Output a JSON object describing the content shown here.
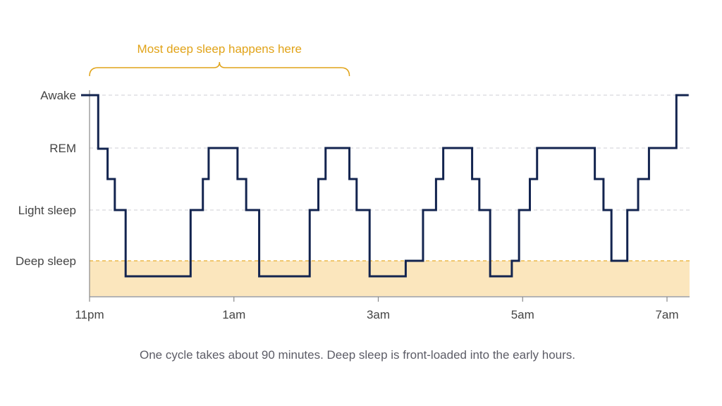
{
  "chart_data": {
    "type": "line",
    "title": "",
    "xlabel": "",
    "ylabel": "",
    "x_unit": "hours",
    "x_ticks": [
      {
        "label": "11pm",
        "value": 23
      },
      {
        "label": "1am",
        "value": 25
      },
      {
        "label": "3am",
        "value": 27
      },
      {
        "label": "5am",
        "value": 29
      },
      {
        "label": "7am",
        "value": 31
      }
    ],
    "xlim": [
      23,
      31.4
    ],
    "y_categories": [
      "Deep sleep",
      "Light sleep",
      "REM",
      "Awake"
    ],
    "deep_sleep_level": "Deep sleep",
    "series": [
      {
        "step": "post",
        "points": [
          {
            "x": 23.0,
            "y": "Awake"
          },
          {
            "x": 23.12,
            "y": "REM-lower"
          },
          {
            "x": 23.25,
            "y": "Light-upper"
          },
          {
            "x": 23.35,
            "y": "Light sleep"
          },
          {
            "x": 23.5,
            "y": "Deep-lower"
          },
          {
            "x": 24.4,
            "y": "Light sleep"
          },
          {
            "x": 24.57,
            "y": "Light-upper"
          },
          {
            "x": 24.65,
            "y": "REM"
          },
          {
            "x": 25.05,
            "y": "Light-upper"
          },
          {
            "x": 25.17,
            "y": "Light sleep"
          },
          {
            "x": 25.35,
            "y": "Deep-lower"
          },
          {
            "x": 26.05,
            "y": "Light sleep"
          },
          {
            "x": 26.17,
            "y": "Light-upper"
          },
          {
            "x": 26.27,
            "y": "REM"
          },
          {
            "x": 26.6,
            "y": "Light-upper"
          },
          {
            "x": 26.7,
            "y": "Light sleep"
          },
          {
            "x": 26.88,
            "y": "Deep-lower"
          },
          {
            "x": 27.38,
            "y": "Deep sleep"
          },
          {
            "x": 27.62,
            "y": "Light sleep"
          },
          {
            "x": 27.8,
            "y": "Light-upper"
          },
          {
            "x": 27.9,
            "y": "REM"
          },
          {
            "x": 28.3,
            "y": "Light-upper"
          },
          {
            "x": 28.4,
            "y": "Light sleep"
          },
          {
            "x": 28.55,
            "y": "Deep-lower"
          },
          {
            "x": 28.85,
            "y": "Deep sleep"
          },
          {
            "x": 28.95,
            "y": "Light sleep"
          },
          {
            "x": 29.1,
            "y": "Light-upper"
          },
          {
            "x": 29.2,
            "y": "REM"
          },
          {
            "x": 30.0,
            "y": "Light-upper"
          },
          {
            "x": 30.12,
            "y": "Light sleep"
          },
          {
            "x": 30.23,
            "y": "Deep sleep"
          },
          {
            "x": 30.45,
            "y": "Light sleep"
          },
          {
            "x": 30.6,
            "y": "Light-upper"
          },
          {
            "x": 30.75,
            "y": "REM"
          },
          {
            "x": 31.13,
            "y": "Awake"
          },
          {
            "x": 31.3,
            "y": "Awake"
          }
        ]
      }
    ],
    "annotation": {
      "text": "Most deep sleep happens here",
      "x_range": [
        23.0,
        26.6
      ]
    },
    "grid": true,
    "colors": {
      "line": "#13244f",
      "deep_band": "#fbe6bd",
      "deep_band_line": "#e8ad2e",
      "annotation": "#e1a318",
      "grid": "#cfcfd6",
      "axis": "#888888"
    }
  },
  "caption": "One cycle takes about 90 minutes. Deep sleep is front-loaded into the early hours."
}
